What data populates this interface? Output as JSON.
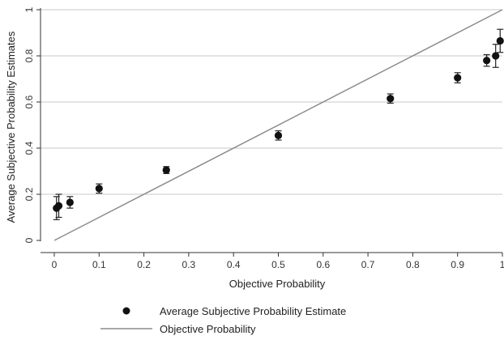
{
  "chart_data": {
    "type": "scatter",
    "title": "",
    "xlabel": "Objective Probability",
    "ylabel": "Average Subjective Probability Estimates",
    "xlim": [
      0,
      1
    ],
    "ylim": [
      0,
      1
    ],
    "x_ticks": [
      "0",
      "0.1",
      "0.2",
      "0.3",
      "0.4",
      "0.5",
      "0.6",
      "0.7",
      "0.8",
      "0.9",
      "1"
    ],
    "y_ticks": [
      "0",
      "0.2",
      "0.4",
      "0.6",
      "0.8",
      "1"
    ],
    "x_tick_values": [
      0,
      0.1,
      0.2,
      0.3,
      0.4,
      0.5,
      0.6,
      0.7,
      0.8,
      0.9,
      1
    ],
    "y_tick_values": [
      0,
      0.2,
      0.4,
      0.6,
      0.8,
      1
    ],
    "grid": "horizontal",
    "legend_placement": "bottom",
    "colors": {
      "points": "#111111",
      "line": "#8c8c8c",
      "grid": "#c8c8c8",
      "axis": "#333333"
    },
    "series": [
      {
        "name": "Average Subjective Probability Estimate",
        "kind": "points_with_error_bars",
        "points": [
          {
            "x": 0.005,
            "y": 0.14,
            "err": 0.05
          },
          {
            "x": 0.01,
            "y": 0.15,
            "err": 0.05
          },
          {
            "x": 0.035,
            "y": 0.165,
            "err": 0.025
          },
          {
            "x": 0.1,
            "y": 0.225,
            "err": 0.02
          },
          {
            "x": 0.25,
            "y": 0.305,
            "err": 0.015
          },
          {
            "x": 0.5,
            "y": 0.455,
            "err": 0.02
          },
          {
            "x": 0.75,
            "y": 0.615,
            "err": 0.02
          },
          {
            "x": 0.9,
            "y": 0.705,
            "err": 0.022
          },
          {
            "x": 0.965,
            "y": 0.78,
            "err": 0.025
          },
          {
            "x": 0.985,
            "y": 0.8,
            "err": 0.05
          },
          {
            "x": 0.995,
            "y": 0.865,
            "err": 0.05
          }
        ]
      },
      {
        "name": "Objective Probability",
        "kind": "line",
        "points": [
          {
            "x": 0,
            "y": 0
          },
          {
            "x": 1,
            "y": 1
          }
        ]
      }
    ]
  }
}
